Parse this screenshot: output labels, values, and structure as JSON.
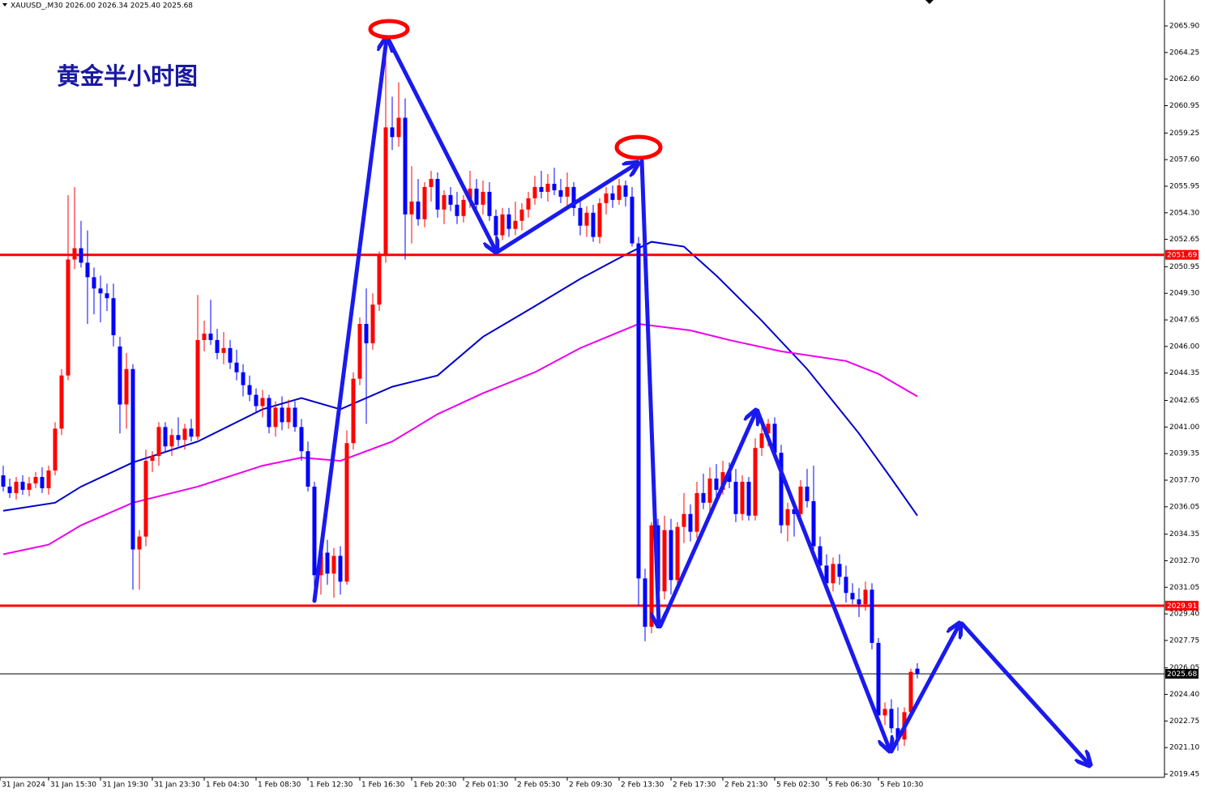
{
  "chart_data": {
    "type": "candlestick",
    "header": "XAUUSD_,M30  2026.00 2026.34 2025.40 2025.68",
    "title": "黄金半小时图",
    "up_color": "#ff0000",
    "down_color": "#0000ff",
    "ylim": [
      2019.25,
      2067.51
    ],
    "yticks": [
      {
        "value": 2065.9,
        "label": "2065.90"
      },
      {
        "value": 2064.25,
        "label": "2064.25"
      },
      {
        "value": 2062.6,
        "label": "2062.60"
      },
      {
        "value": 2060.95,
        "label": "2060.95"
      },
      {
        "value": 2059.25,
        "label": "2059.25"
      },
      {
        "value": 2057.6,
        "label": "2057.60"
      },
      {
        "value": 2055.95,
        "label": "2055.95"
      },
      {
        "value": 2054.3,
        "label": "2054.30"
      },
      {
        "value": 2052.65,
        "label": "2052.65"
      },
      {
        "value": 2050.95,
        "label": "2050.95"
      },
      {
        "value": 2049.3,
        "label": "2049.30"
      },
      {
        "value": 2047.65,
        "label": "2047.65"
      },
      {
        "value": 2046,
        "label": "2046.00"
      },
      {
        "value": 2044.35,
        "label": "2044.35"
      },
      {
        "value": 2042.65,
        "label": "2042.65"
      },
      {
        "value": 2041,
        "label": "2041.00"
      },
      {
        "value": 2039.35,
        "label": "2039.35"
      },
      {
        "value": 2037.7,
        "label": "2037.70"
      },
      {
        "value": 2036.05,
        "label": "2036.05"
      },
      {
        "value": 2034.35,
        "label": "2034.35"
      },
      {
        "value": 2032.7,
        "label": "2032.70"
      },
      {
        "value": 2031.05,
        "label": "2031.05"
      },
      {
        "value": 2029.4,
        "label": "2029.40"
      },
      {
        "value": 2027.75,
        "label": "2027.75"
      },
      {
        "value": 2026.05,
        "label": "2026.05"
      },
      {
        "value": 2024.4,
        "label": "2024.40"
      },
      {
        "value": 2022.75,
        "label": "2022.75"
      },
      {
        "value": 2021.1,
        "label": "2021.10"
      },
      {
        "value": 2019.45,
        "label": "2019.45"
      }
    ],
    "time_labels": [
      "31 Jan 2024",
      "31 Jan 15:30",
      "31 Jan 19:30",
      "31 Jan 23:30",
      "1 Feb 04:30",
      "1 Feb 08:30",
      "1 Feb 12:30",
      "1 Feb 16:30",
      "1 Feb 20:30",
      "2 Feb 01:30",
      "2 Feb 05:30",
      "2 Feb 09:30",
      "2 Feb 13:30",
      "2 Feb 17:30",
      "2 Feb 21:30",
      "5 Feb 02:30",
      "5 Feb 06:30",
      "5 Feb 10:30"
    ],
    "levels": [
      {
        "value": 2051.69,
        "color": "#ff0000"
      },
      {
        "value": 2029.91,
        "color": "#ff0000"
      }
    ],
    "current_price": {
      "value": 2025.68,
      "color": "#000000"
    },
    "moving_averages": [
      {
        "color": "#0000cc",
        "x": [
          0,
          8,
          12,
          20,
          30,
          40,
          46,
          52,
          60,
          67,
          74,
          82,
          89,
          96,
          100,
          105,
          110,
          117,
          124,
          132,
          137,
          141
        ],
        "values": [
          2035.8,
          2036.3,
          2037.3,
          2038.8,
          2040.1,
          2042.1,
          2042.8,
          2042.1,
          2043.5,
          2044.2,
          2046.6,
          2048.5,
          2050.2,
          2051.7,
          2052.5,
          2052.2,
          2050.4,
          2047.6,
          2044.6,
          2040.6,
          2037.8,
          2035.5
        ]
      },
      {
        "color": "#ee00ee",
        "x": [
          0,
          7,
          12,
          20,
          30,
          40,
          46,
          52,
          60,
          67,
          74,
          82,
          89,
          98,
          106,
          112,
          120,
          130,
          135,
          141
        ],
        "values": [
          2033.1,
          2033.7,
          2034.9,
          2036.3,
          2037.3,
          2038.6,
          2039.1,
          2038.9,
          2040.1,
          2041.8,
          2043.1,
          2044.4,
          2045.9,
          2047.4,
          2047.0,
          2046.4,
          2045.7,
          2045.1,
          2044.3,
          2042.9
        ]
      }
    ],
    "candles": [
      [
        2038.0,
        2038.6,
        2037.0,
        2037.3
      ],
      [
        2037.3,
        2037.8,
        2036.6,
        2036.9
      ],
      [
        2036.9,
        2037.9,
        2036.5,
        2037.6
      ],
      [
        2037.6,
        2038.0,
        2036.8,
        2037.1
      ],
      [
        2037.1,
        2037.9,
        2036.7,
        2037.5
      ],
      [
        2037.5,
        2038.2,
        2037.2,
        2037.9
      ],
      [
        2037.9,
        2038.5,
        2036.9,
        2037.2
      ],
      [
        2037.2,
        2038.6,
        2036.8,
        2038.3
      ],
      [
        2038.3,
        2041.3,
        2038.0,
        2040.9
      ],
      [
        2040.9,
        2044.6,
        2040.5,
        2044.2
      ],
      [
        2044.2,
        2055.4,
        2043.9,
        2051.4
      ],
      [
        2051.4,
        2055.9,
        2050.8,
        2052.1
      ],
      [
        2052.1,
        2053.8,
        2050.9,
        2051.2
      ],
      [
        2051.2,
        2053.2,
        2047.4,
        2050.3
      ],
      [
        2050.3,
        2050.9,
        2048.0,
        2049.6
      ],
      [
        2049.6,
        2050.4,
        2047.5,
        2049.3
      ],
      [
        2049.3,
        2049.9,
        2048.2,
        2049.0
      ],
      [
        2049.0,
        2049.9,
        2046.0,
        2046.7
      ],
      [
        2046.0,
        2046.6,
        2040.6,
        2042.4
      ],
      [
        2042.4,
        2045.6,
        2040.9,
        2044.6
      ],
      [
        2044.6,
        2044.9,
        2030.9,
        2033.4
      ],
      [
        2033.4,
        2034.6,
        2030.9,
        2034.2
      ],
      [
        2034.2,
        2039.6,
        2033.6,
        2038.9
      ],
      [
        2038.9,
        2039.5,
        2038.2,
        2039.2
      ],
      [
        2039.2,
        2041.3,
        2038.6,
        2041.0
      ],
      [
        2041.0,
        2041.3,
        2039.5,
        2039.8
      ],
      [
        2039.8,
        2040.9,
        2039.2,
        2040.5
      ],
      [
        2040.5,
        2041.6,
        2039.8,
        2040.2
      ],
      [
        2040.2,
        2041.2,
        2039.6,
        2040.9
      ],
      [
        2040.9,
        2041.5,
        2040.1,
        2040.4
      ],
      [
        2040.4,
        2049.2,
        2040.2,
        2046.4
      ],
      [
        2046.4,
        2047.6,
        2045.7,
        2046.8
      ],
      [
        2046.8,
        2048.9,
        2046.1,
        2046.4
      ],
      [
        2046.4,
        2047.1,
        2045.2,
        2045.6
      ],
      [
        2045.6,
        2046.9,
        2044.9,
        2045.9
      ],
      [
        2045.9,
        2046.4,
        2044.6,
        2045.0
      ],
      [
        2045.0,
        2045.8,
        2043.9,
        2044.4
      ],
      [
        2044.4,
        2044.9,
        2042.9,
        2043.6
      ],
      [
        2043.6,
        2044.2,
        2042.6,
        2043.0
      ],
      [
        2043.0,
        2043.4,
        2041.9,
        2042.3
      ],
      [
        2042.3,
        2043.3,
        2041.6,
        2042.8
      ],
      [
        2042.8,
        2043.0,
        2040.6,
        2041.0
      ],
      [
        2041.0,
        2042.6,
        2040.4,
        2042.2
      ],
      [
        2042.2,
        2042.9,
        2040.8,
        2041.3
      ],
      [
        2041.3,
        2042.7,
        2040.9,
        2042.2
      ],
      [
        2042.2,
        2042.6,
        2040.7,
        2041.0
      ],
      [
        2041.0,
        2041.5,
        2038.9,
        2039.5
      ],
      [
        2039.5,
        2040.1,
        2037.0,
        2037.3
      ],
      [
        2037.3,
        2037.6,
        2030.3,
        2031.8
      ],
      [
        2031.8,
        2033.6,
        2030.6,
        2033.2
      ],
      [
        2033.2,
        2034.0,
        2031.2,
        2031.9
      ],
      [
        2031.9,
        2033.5,
        2030.4,
        2033.0
      ],
      [
        2033.0,
        2033.6,
        2030.6,
        2031.4
      ],
      [
        2031.4,
        2040.8,
        2031.2,
        2040.0
      ],
      [
        2040.0,
        2044.4,
        2039.6,
        2044.0
      ],
      [
        2044.0,
        2047.8,
        2043.6,
        2047.4
      ],
      [
        2047.4,
        2049.6,
        2041.2,
        2046.2
      ],
      [
        2046.2,
        2049.3,
        2045.8,
        2048.6
      ],
      [
        2048.6,
        2051.9,
        2048.2,
        2051.7
      ],
      [
        2051.7,
        2064.7,
        2051.2,
        2059.6
      ],
      [
        2059.6,
        2061.5,
        2058.2,
        2059.0
      ],
      [
        2059.0,
        2062.4,
        2058.4,
        2060.2
      ],
      [
        2060.2,
        2061.4,
        2051.4,
        2054.2
      ],
      [
        2054.2,
        2057.2,
        2052.4,
        2055.0
      ],
      [
        2055.0,
        2056.4,
        2053.5,
        2053.9
      ],
      [
        2053.9,
        2056.2,
        2053.4,
        2055.9
      ],
      [
        2055.9,
        2056.9,
        2055.0,
        2056.4
      ],
      [
        2056.4,
        2056.8,
        2054.0,
        2054.5
      ],
      [
        2054.5,
        2055.7,
        2053.6,
        2055.4
      ],
      [
        2055.4,
        2055.9,
        2054.4,
        2054.8
      ],
      [
        2054.8,
        2055.6,
        2053.6,
        2054.1
      ],
      [
        2054.1,
        2055.4,
        2053.7,
        2055.1
      ],
      [
        2055.1,
        2056.9,
        2054.6,
        2055.8
      ],
      [
        2055.8,
        2056.4,
        2054.5,
        2054.8
      ],
      [
        2054.8,
        2056.3,
        2054.2,
        2055.6
      ],
      [
        2055.6,
        2056.2,
        2053.8,
        2054.1
      ],
      [
        2054.1,
        2054.5,
        2052.5,
        2052.9
      ],
      [
        2052.9,
        2054.6,
        2052.6,
        2054.2
      ],
      [
        2054.2,
        2054.6,
        2052.8,
        2053.3
      ],
      [
        2053.3,
        2055.0,
        2052.9,
        2053.8
      ],
      [
        2053.8,
        2054.9,
        2053.2,
        2054.5
      ],
      [
        2054.5,
        2055.6,
        2054.0,
        2055.2
      ],
      [
        2055.2,
        2056.6,
        2054.8,
        2055.9
      ],
      [
        2055.9,
        2056.9,
        2055.2,
        2055.6
      ],
      [
        2055.6,
        2056.7,
        2055.0,
        2056.1
      ],
      [
        2056.1,
        2057.1,
        2055.4,
        2055.7
      ],
      [
        2055.7,
        2056.4,
        2054.9,
        2055.3
      ],
      [
        2055.3,
        2056.8,
        2054.6,
        2055.9
      ],
      [
        2055.9,
        2056.2,
        2054.1,
        2054.6
      ],
      [
        2054.6,
        2055.3,
        2052.9,
        2053.5
      ],
      [
        2053.5,
        2054.7,
        2052.8,
        2054.3
      ],
      [
        2054.3,
        2054.8,
        2052.5,
        2052.8
      ],
      [
        2052.8,
        2055.2,
        2052.4,
        2054.9
      ],
      [
        2054.9,
        2055.9,
        2054.2,
        2055.5
      ],
      [
        2055.5,
        2056.0,
        2054.6,
        2055.1
      ],
      [
        2055.1,
        2056.4,
        2054.8,
        2056.0
      ],
      [
        2056.0,
        2056.3,
        2054.7,
        2055.3
      ],
      [
        2055.3,
        2055.9,
        2052.2,
        2052.4
      ],
      [
        2052.4,
        2052.8,
        2029.9,
        2031.6
      ],
      [
        2031.6,
        2032.2,
        2027.7,
        2028.6
      ],
      [
        2028.6,
        2035.1,
        2028.2,
        2034.9
      ],
      [
        2034.9,
        2035.3,
        2029.6,
        2030.8
      ],
      [
        2030.8,
        2035.5,
        2030.3,
        2034.6
      ],
      [
        2034.6,
        2035.3,
        2030.6,
        2031.5
      ],
      [
        2031.5,
        2035.1,
        2030.9,
        2034.8
      ],
      [
        2034.8,
        2036.9,
        2033.8,
        2035.6
      ],
      [
        2035.6,
        2036.2,
        2033.9,
        2034.5
      ],
      [
        2034.5,
        2037.6,
        2034.1,
        2036.9
      ],
      [
        2036.9,
        2038.1,
        2035.9,
        2036.3
      ],
      [
        2036.3,
        2038.5,
        2035.8,
        2037.8
      ],
      [
        2037.8,
        2038.7,
        2036.4,
        2037.1
      ],
      [
        2037.1,
        2038.9,
        2036.8,
        2038.2
      ],
      [
        2038.2,
        2038.8,
        2037.2,
        2037.6
      ],
      [
        2037.6,
        2038.4,
        2035.1,
        2035.6
      ],
      [
        2035.6,
        2038.0,
        2035.2,
        2037.6
      ],
      [
        2037.6,
        2037.9,
        2035.2,
        2035.5
      ],
      [
        2035.5,
        2040.3,
        2035.2,
        2039.7
      ],
      [
        2039.7,
        2041.2,
        2039.2,
        2040.6
      ],
      [
        2040.6,
        2041.5,
        2039.8,
        2041.2
      ],
      [
        2041.2,
        2041.6,
        2039.0,
        2039.4
      ],
      [
        2039.4,
        2039.9,
        2034.4,
        2034.9
      ],
      [
        2034.9,
        2036.3,
        2033.9,
        2035.9
      ],
      [
        2035.9,
        2036.4,
        2034.2,
        2035.6
      ],
      [
        2035.6,
        2037.7,
        2035.2,
        2037.3
      ],
      [
        2037.3,
        2038.4,
        2036.0,
        2036.4
      ],
      [
        2036.4,
        2038.6,
        2033.2,
        2033.6
      ],
      [
        2033.6,
        2034.2,
        2031.8,
        2032.4
      ],
      [
        2032.4,
        2033.1,
        2030.9,
        2031.3
      ],
      [
        2031.3,
        2032.9,
        2030.8,
        2032.5
      ],
      [
        2032.5,
        2033.1,
        2031.2,
        2031.7
      ],
      [
        2031.7,
        2032.4,
        2030.1,
        2030.7
      ],
      [
        2030.7,
        2031.3,
        2030.0,
        2030.3
      ],
      [
        2030.3,
        2031.0,
        2029.2,
        2030.0
      ],
      [
        2030.0,
        2031.4,
        2029.6,
        2030.9
      ],
      [
        2030.9,
        2031.3,
        2027.2,
        2027.6
      ],
      [
        2027.6,
        2027.9,
        2022.6,
        2023.1
      ],
      [
        2023.1,
        2023.9,
        2022.5,
        2023.5
      ],
      [
        2023.5,
        2024.1,
        2022.0,
        2022.3
      ],
      [
        2022.3,
        2023.6,
        2020.9,
        2021.6
      ],
      [
        2021.6,
        2023.6,
        2021.2,
        2023.3
      ],
      [
        2023.3,
        2026.0,
        2023.0,
        2025.8
      ],
      [
        2026.0,
        2026.34,
        2025.4,
        2025.68
      ]
    ]
  }
}
